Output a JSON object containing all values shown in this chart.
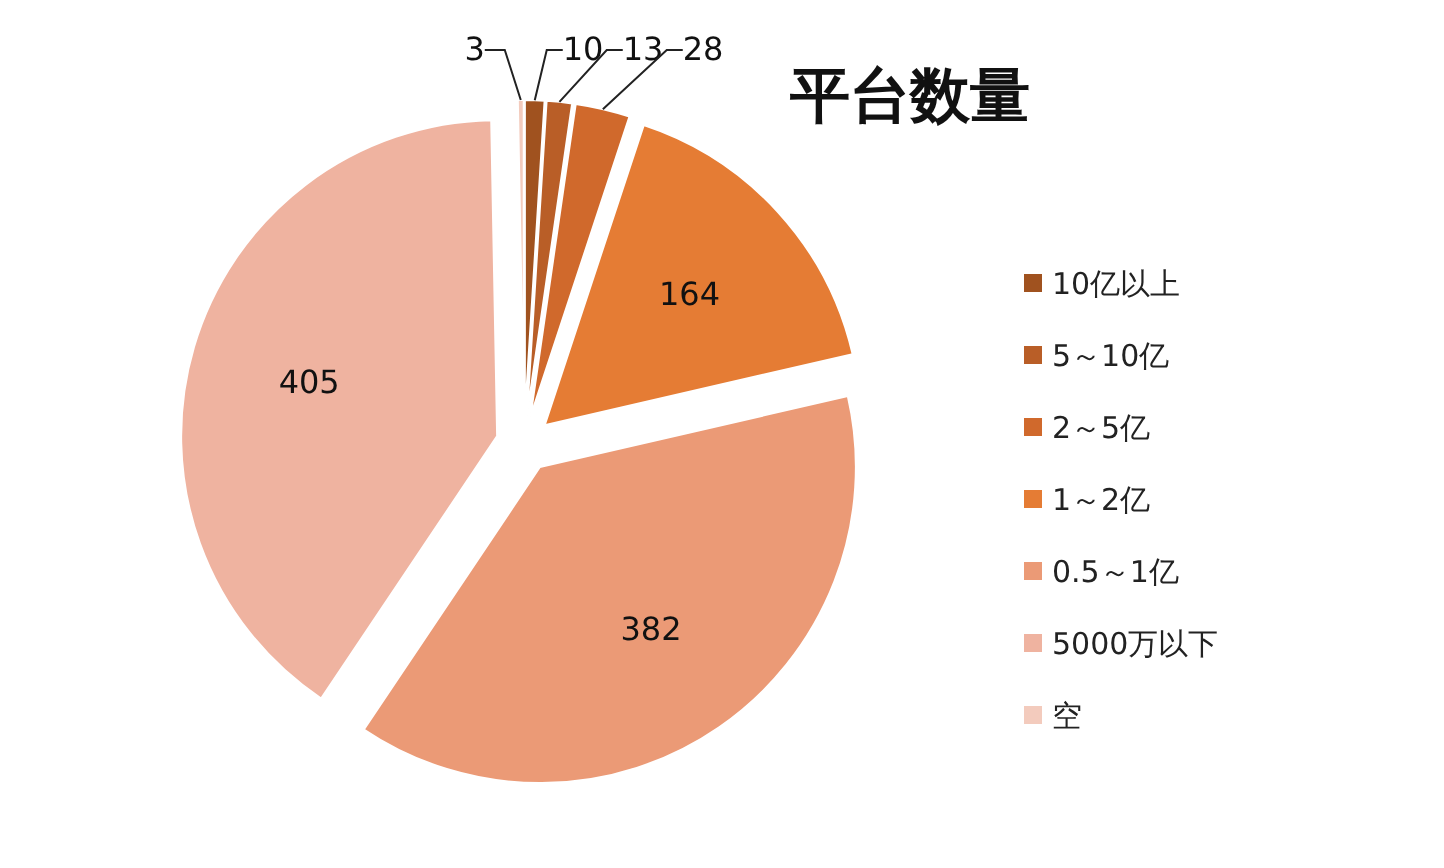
{
  "chart_data": {
    "type": "pie",
    "title": "平台数量",
    "categories": [
      "10亿以上",
      "5～10亿",
      "2～5亿",
      "1～2亿",
      "0.5～1亿",
      "5000万以下",
      "空"
    ],
    "values": [
      10,
      13,
      28,
      164,
      382,
      405,
      3
    ],
    "colors": [
      "#a0521f",
      "#b95e27",
      "#d0692c",
      "#e57c34",
      "#eb9a76",
      "#efb3a0",
      "#f3cbbd"
    ],
    "data_labels": true,
    "legend": "right"
  }
}
